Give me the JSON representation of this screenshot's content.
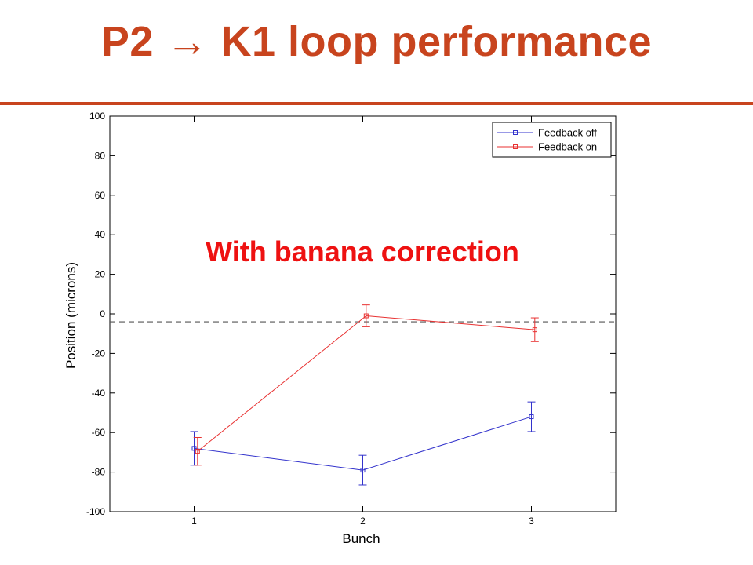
{
  "slide": {
    "title": "P2 → K1 loop performance",
    "accent_color": "#c8441e"
  },
  "chart_data": {
    "type": "line",
    "xlabel": "Bunch",
    "ylabel": "Position (microns)",
    "xlim": [
      0.5,
      3.5
    ],
    "ylim": [
      -100,
      100
    ],
    "xticks": [
      1,
      2,
      3
    ],
    "yticks": [
      -100,
      -80,
      -60,
      -40,
      -20,
      0,
      20,
      40,
      60,
      80,
      100
    ],
    "grid": false,
    "legend_position": "top-right",
    "reference_line": {
      "y": -4,
      "style": "dashed",
      "color": "#555555"
    },
    "annotation": {
      "text": "With banana correction",
      "color": "#ee1111"
    },
    "series": [
      {
        "name": "Feedback off",
        "color": "#3333cc",
        "marker": "square",
        "x": [
          1,
          2,
          3
        ],
        "y": [
          -68,
          -79,
          -52
        ],
        "err": [
          8.5,
          7.5,
          7.5
        ]
      },
      {
        "name": "Feedback on",
        "color": "#e83030",
        "marker": "square",
        "x": [
          1.02,
          2.02,
          3.02
        ],
        "y": [
          -69.5,
          -1,
          -8
        ],
        "err": [
          7,
          5.5,
          6
        ]
      }
    ]
  }
}
